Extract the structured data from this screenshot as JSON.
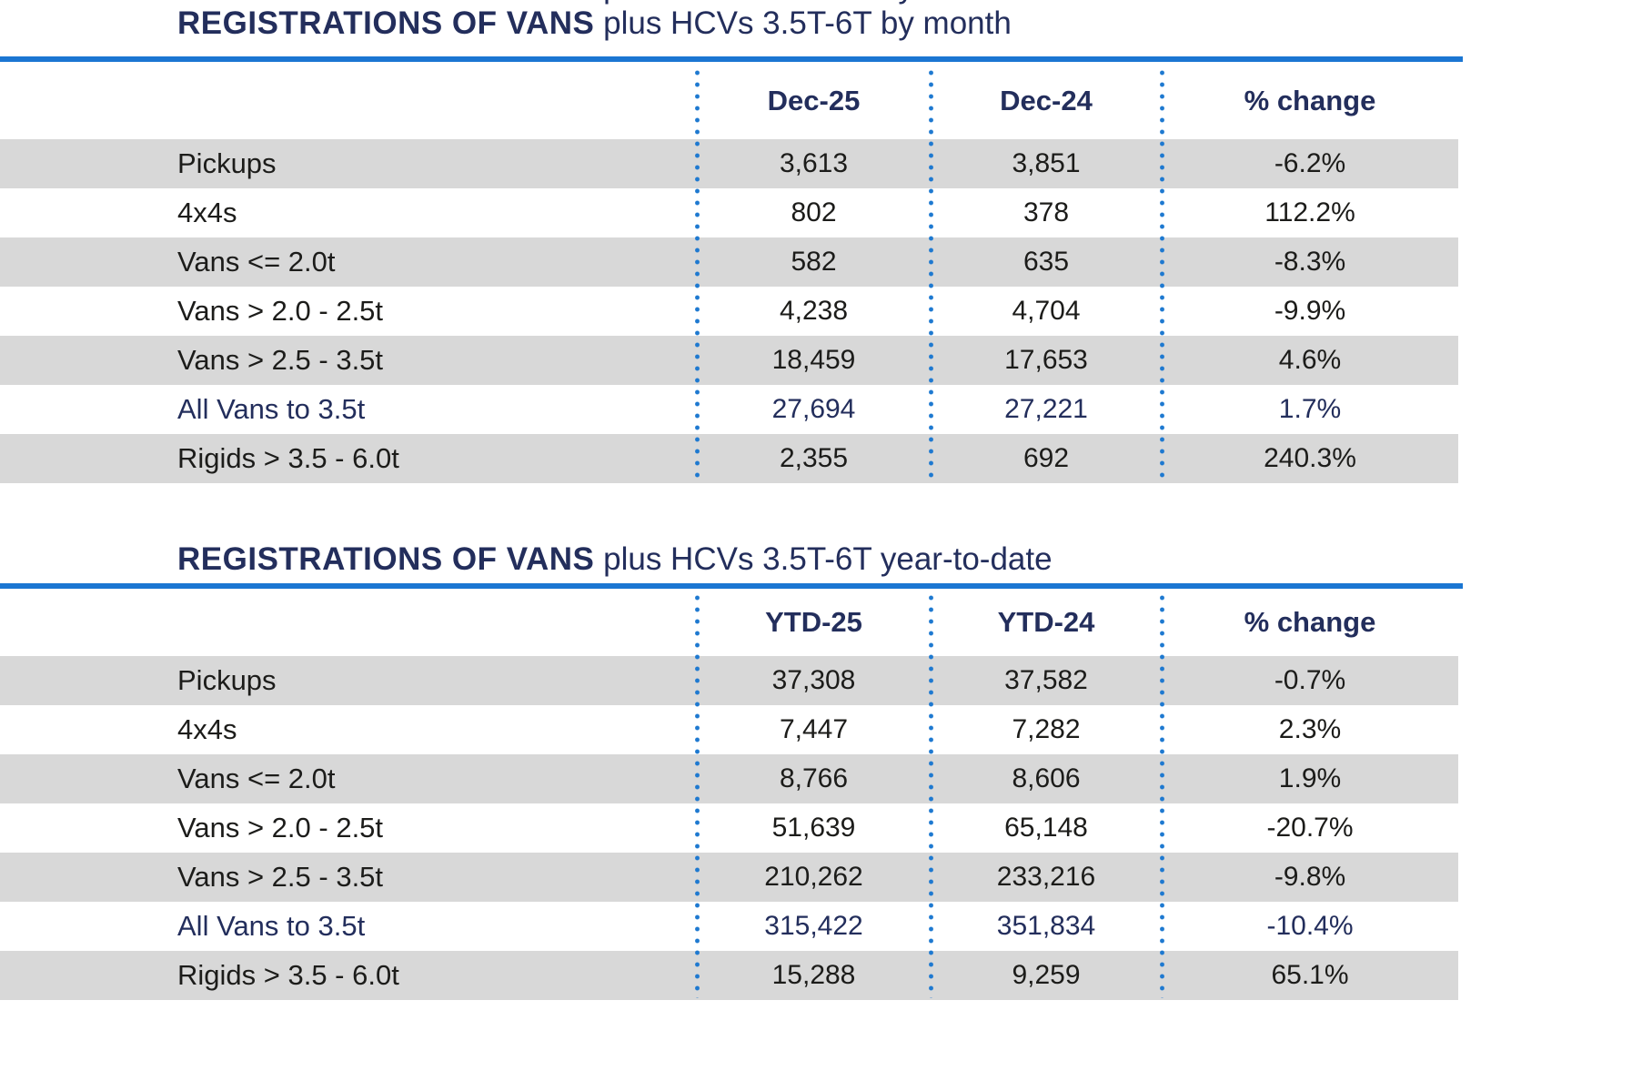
{
  "colors": {
    "navy": "#232e5c",
    "accent_blue": "#1b76d2",
    "row_gray": "#d8d8d8",
    "body_text": "#1c1c1a"
  },
  "tables": [
    {
      "title_bold": "REGISTRATIONS OF VANS",
      "title_rest": " plus HCVs 3.5T-6T by month",
      "columns": [
        "Dec-25",
        "Dec-24",
        "% change"
      ],
      "rows": [
        {
          "label": "Pickups",
          "v1": "3,613",
          "v2": "3,851",
          "pct": "-6.2%"
        },
        {
          "label": "4x4s",
          "v1": "802",
          "v2": "378",
          "pct": "112.2%"
        },
        {
          "label": "Vans <= 2.0t",
          "v1": "582",
          "v2": "635",
          "pct": "-8.3%"
        },
        {
          "label": "Vans > 2.0 - 2.5t",
          "v1": "4,238",
          "v2": "4,704",
          "pct": "-9.9%"
        },
        {
          "label": "Vans > 2.5 - 3.5t",
          "v1": "18,459",
          "v2": "17,653",
          "pct": "4.6%"
        },
        {
          "label": "All Vans to 3.5t",
          "v1": "27,694",
          "v2": "27,221",
          "pct": "1.7%"
        },
        {
          "label": "Rigids > 3.5 - 6.0t",
          "v1": "2,355",
          "v2": "692",
          "pct": "240.3%"
        }
      ]
    },
    {
      "title_bold": "REGISTRATIONS OF VANS",
      "title_rest": " plus HCVs 3.5T-6T year-to-date",
      "columns": [
        "YTD-25",
        "YTD-24",
        "% change"
      ],
      "rows": [
        {
          "label": "Pickups",
          "v1": "37,308",
          "v2": "37,582",
          "pct": "-0.7%"
        },
        {
          "label": "4x4s",
          "v1": "7,447",
          "v2": "7,282",
          "pct": "2.3%"
        },
        {
          "label": "Vans <= 2.0t",
          "v1": "8,766",
          "v2": "8,606",
          "pct": "1.9%"
        },
        {
          "label": "Vans > 2.0 - 2.5t",
          "v1": "51,639",
          "v2": "65,148",
          "pct": "-20.7%"
        },
        {
          "label": "Vans > 2.5 - 3.5t",
          "v1": "210,262",
          "v2": "233,216",
          "pct": "-9.8%"
        },
        {
          "label": "All Vans to 3.5t",
          "v1": "315,422",
          "v2": "351,834",
          "pct": "-10.4%"
        },
        {
          "label": "Rigids > 3.5 - 6.0t",
          "v1": "15,288",
          "v2": "9,259",
          "pct": "65.1%"
        }
      ]
    }
  ]
}
